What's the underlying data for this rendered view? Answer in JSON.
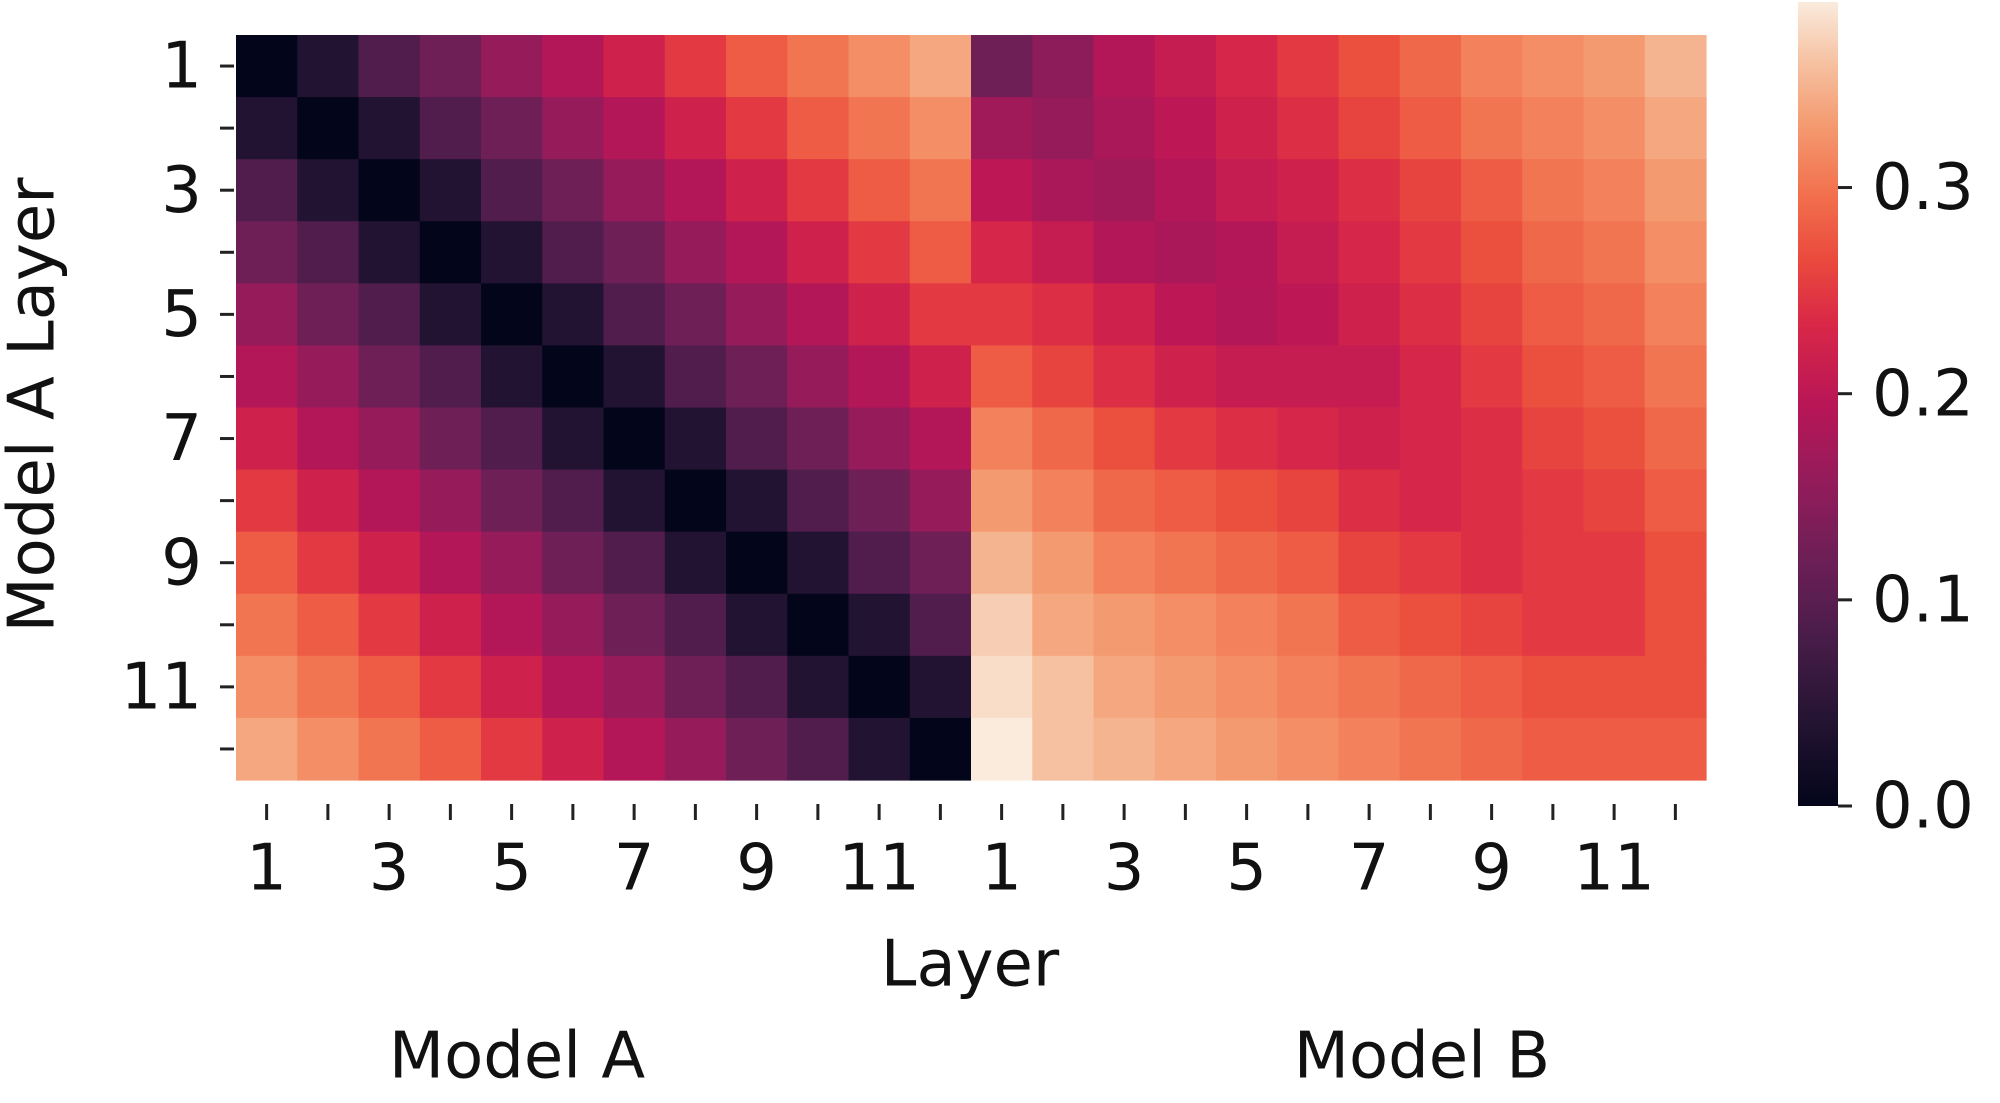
{
  "chart_data": {
    "type": "heatmap",
    "xlabel": "Layer",
    "ylabel": "Model A Layer",
    "groups": [
      "Model A",
      "Model B"
    ],
    "x": [
      1,
      null,
      3,
      null,
      5,
      null,
      7,
      null,
      9,
      null,
      11,
      null,
      1,
      null,
      3,
      null,
      5,
      null,
      7,
      null,
      9,
      null,
      11,
      null
    ],
    "y": [
      1,
      null,
      3,
      null,
      5,
      null,
      7,
      null,
      9,
      null,
      11,
      null
    ],
    "colormap": "rocket",
    "clim": [
      0,
      0.39
    ],
    "cticks": [
      {
        "value": 0,
        "label": "0.0"
      },
      0.1,
      0.2,
      0.3
    ],
    "values": [
      [
        0,
        0.04,
        0.09,
        0.12,
        0.16,
        0.19,
        0.22,
        0.25,
        0.28,
        0.3,
        0.32,
        0.34,
        0.12,
        0.15,
        0.19,
        0.21,
        0.23,
        0.25,
        0.27,
        0.29,
        0.31,
        0.32,
        0.33,
        0.35
      ],
      [
        0.04,
        0,
        0.04,
        0.09,
        0.12,
        0.16,
        0.19,
        0.22,
        0.25,
        0.28,
        0.3,
        0.32,
        0.17,
        0.16,
        0.18,
        0.2,
        0.22,
        0.24,
        0.26,
        0.28,
        0.3,
        0.31,
        0.32,
        0.34
      ],
      [
        0.09,
        0.04,
        0,
        0.04,
        0.09,
        0.12,
        0.16,
        0.19,
        0.22,
        0.25,
        0.28,
        0.3,
        0.2,
        0.18,
        0.17,
        0.19,
        0.21,
        0.22,
        0.24,
        0.26,
        0.28,
        0.3,
        0.31,
        0.33
      ],
      [
        0.12,
        0.09,
        0.04,
        0,
        0.04,
        0.09,
        0.12,
        0.16,
        0.19,
        0.22,
        0.25,
        0.28,
        0.23,
        0.21,
        0.19,
        0.18,
        0.19,
        0.21,
        0.23,
        0.25,
        0.27,
        0.29,
        0.3,
        0.32
      ],
      [
        0.16,
        0.12,
        0.09,
        0.04,
        0,
        0.04,
        0.09,
        0.12,
        0.16,
        0.19,
        0.22,
        0.25,
        0.25,
        0.24,
        0.22,
        0.2,
        0.19,
        0.2,
        0.22,
        0.24,
        0.26,
        0.28,
        0.29,
        0.31
      ],
      [
        0.19,
        0.16,
        0.12,
        0.09,
        0.04,
        0,
        0.04,
        0.09,
        0.12,
        0.16,
        0.19,
        0.22,
        0.28,
        0.26,
        0.24,
        0.22,
        0.21,
        0.21,
        0.21,
        0.23,
        0.25,
        0.27,
        0.28,
        0.3
      ],
      [
        0.22,
        0.19,
        0.16,
        0.12,
        0.09,
        0.04,
        0,
        0.04,
        0.09,
        0.12,
        0.16,
        0.19,
        0.31,
        0.29,
        0.27,
        0.25,
        0.24,
        0.23,
        0.22,
        0.23,
        0.24,
        0.26,
        0.27,
        0.29
      ],
      [
        0.25,
        0.22,
        0.19,
        0.16,
        0.12,
        0.09,
        0.04,
        0,
        0.04,
        0.09,
        0.12,
        0.16,
        0.33,
        0.31,
        0.29,
        0.28,
        0.27,
        0.26,
        0.24,
        0.23,
        0.24,
        0.25,
        0.26,
        0.28
      ],
      [
        0.28,
        0.25,
        0.22,
        0.19,
        0.16,
        0.12,
        0.09,
        0.04,
        0,
        0.04,
        0.09,
        0.12,
        0.35,
        0.33,
        0.31,
        0.3,
        0.29,
        0.28,
        0.26,
        0.25,
        0.24,
        0.25,
        0.25,
        0.27
      ],
      [
        0.3,
        0.28,
        0.25,
        0.22,
        0.19,
        0.16,
        0.12,
        0.09,
        0.04,
        0,
        0.04,
        0.09,
        0.37,
        0.34,
        0.33,
        0.32,
        0.31,
        0.3,
        0.28,
        0.27,
        0.26,
        0.25,
        0.25,
        0.27
      ],
      [
        0.32,
        0.3,
        0.28,
        0.25,
        0.22,
        0.19,
        0.16,
        0.12,
        0.09,
        0.04,
        0,
        0.04,
        0.38,
        0.36,
        0.34,
        0.33,
        0.32,
        0.31,
        0.3,
        0.29,
        0.28,
        0.27,
        0.27,
        0.27
      ],
      [
        0.34,
        0.32,
        0.3,
        0.28,
        0.25,
        0.22,
        0.19,
        0.16,
        0.12,
        0.09,
        0.04,
        0,
        0.39,
        0.36,
        0.35,
        0.34,
        0.33,
        0.32,
        0.31,
        0.3,
        0.29,
        0.28,
        0.28,
        0.28
      ]
    ]
  }
}
